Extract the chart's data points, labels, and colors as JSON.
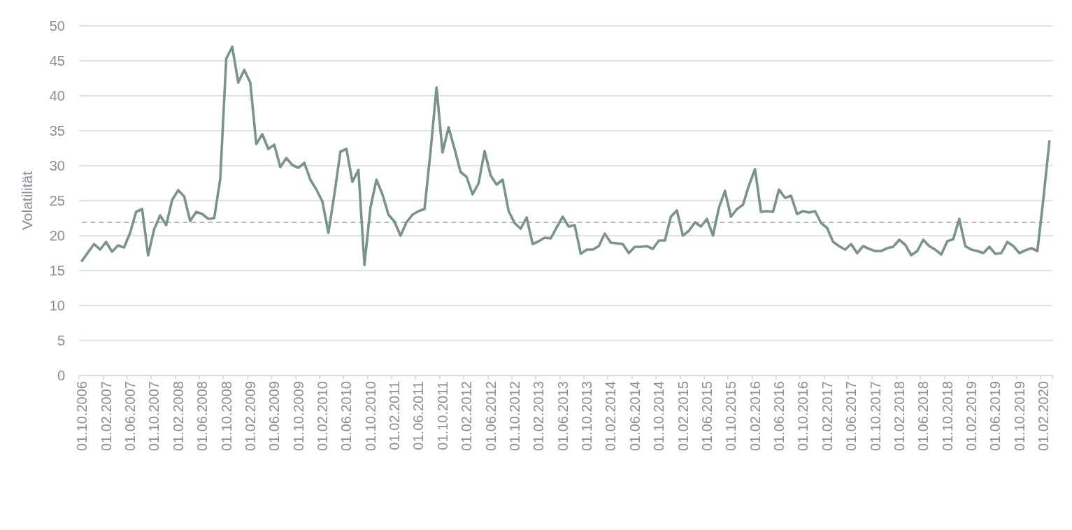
{
  "chart_data": {
    "type": "line",
    "ylabel": "Volatilität",
    "categories": [
      "01.10.2006",
      null,
      null,
      null,
      "01.02.2007",
      null,
      null,
      null,
      "01.06.2007",
      null,
      null,
      null,
      "01.10.2007",
      null,
      null,
      null,
      "01.02.2008",
      null,
      null,
      null,
      "01.06.2008",
      null,
      null,
      null,
      "01.10.2008",
      null,
      null,
      null,
      "01.02.2009",
      null,
      null,
      null,
      "01.06.2009",
      null,
      null,
      null,
      "01.10.2009",
      null,
      null,
      null,
      "01.02.2010",
      null,
      null,
      null,
      "01.06.2010",
      null,
      null,
      null,
      "01.10.2010",
      null,
      null,
      null,
      "01.02.2011",
      null,
      null,
      null,
      "01.06.2011",
      null,
      null,
      null,
      "01.10.2011",
      null,
      null,
      null,
      "01.02.2012",
      null,
      null,
      null,
      "01.06.2012",
      null,
      null,
      null,
      "01.10.2012",
      null,
      null,
      null,
      "01.02.2013",
      null,
      null,
      null,
      "01.06.2013",
      null,
      null,
      null,
      "01.10.2013",
      null,
      null,
      null,
      "01.02.2014",
      null,
      null,
      null,
      "01.06.2014",
      null,
      null,
      null,
      "01.10.2014",
      null,
      null,
      null,
      "01.02.2015",
      null,
      null,
      null,
      "01.06.2015",
      null,
      null,
      null,
      "01.10.2015",
      null,
      null,
      null,
      "01.02.2016",
      null,
      null,
      null,
      "01.06.2016",
      null,
      null,
      null,
      "01.10.2016",
      null,
      null,
      null,
      "01.02.2017",
      null,
      null,
      null,
      "01.06.2017",
      null,
      null,
      null,
      "01.10.2017",
      null,
      null,
      null,
      "01.02.2018",
      null,
      null,
      null,
      "01.06.2018",
      null,
      null,
      null,
      "01.10.2018",
      null,
      null,
      null,
      "01.02.2019",
      null,
      null,
      null,
      "01.06.2019",
      null,
      null,
      null,
      "01.10.2019",
      null,
      null,
      null,
      "01.02.2020",
      null
    ],
    "series": [
      {
        "color": "#7b9489",
        "values": [
          16.4,
          17.6,
          18.8,
          18.0,
          19.1,
          17.7,
          18.6,
          18.3,
          20.4,
          23.4,
          23.8,
          17.2,
          20.9,
          22.9,
          21.5,
          25.1,
          26.5,
          25.6,
          22.1,
          23.4,
          23.1,
          22.4,
          22.5,
          28.1,
          45.3,
          47.0,
          41.9,
          43.7,
          41.9,
          33.1,
          34.5,
          32.4,
          33.0,
          29.8,
          31.1,
          30.1,
          29.7,
          30.4,
          28.0,
          26.6,
          24.9,
          20.4,
          25.9,
          32.0,
          32.4,
          27.7,
          29.4,
          15.8,
          24.0,
          28.0,
          25.9,
          23.0,
          22.0,
          20.0,
          21.9,
          23.0,
          23.5,
          23.8,
          32.0,
          41.2,
          31.9,
          35.5,
          32.4,
          29.1,
          28.4,
          25.9,
          27.5,
          32.1,
          28.6,
          27.3,
          28.0,
          23.5,
          21.8,
          21.0,
          22.6,
          18.8,
          19.2,
          19.7,
          19.6,
          21.2,
          22.7,
          21.3,
          21.5,
          17.4,
          18.0,
          18.0,
          18.5,
          20.3,
          19.0,
          18.9,
          18.8,
          17.5,
          18.4,
          18.4,
          18.5,
          18.1,
          19.3,
          19.3,
          22.7,
          23.6,
          20.0,
          20.7,
          21.9,
          21.3,
          22.4,
          20.0,
          24.0,
          26.4,
          22.7,
          23.8,
          24.4,
          27.2,
          29.5,
          23.4,
          23.5,
          23.4,
          26.6,
          25.4,
          25.7,
          23.1,
          23.5,
          23.3,
          23.5,
          21.8,
          21.1,
          19.1,
          18.5,
          18.0,
          18.8,
          17.5,
          18.5,
          18.1,
          17.8,
          17.8,
          18.2,
          18.4,
          19.4,
          18.7,
          17.2,
          17.8,
          19.4,
          18.5,
          18.0,
          17.3,
          19.2,
          19.5,
          22.4,
          18.5,
          18.0,
          17.8,
          17.5,
          18.4,
          17.4,
          17.5,
          19.1,
          18.5,
          17.5,
          17.9,
          18.2,
          17.8,
          25.3,
          33.5
        ]
      }
    ],
    "ylim": [
      0,
      50
    ],
    "yticks": [
      0,
      5,
      10,
      15,
      20,
      25,
      30,
      35,
      40,
      45,
      50
    ],
    "grid": "y",
    "marker": "none",
    "line_style": "solid",
    "ref_lines": [
      {
        "axis": "y",
        "value": 21.9,
        "color": "#b3bab7",
        "line_style": "dashed"
      }
    ]
  }
}
